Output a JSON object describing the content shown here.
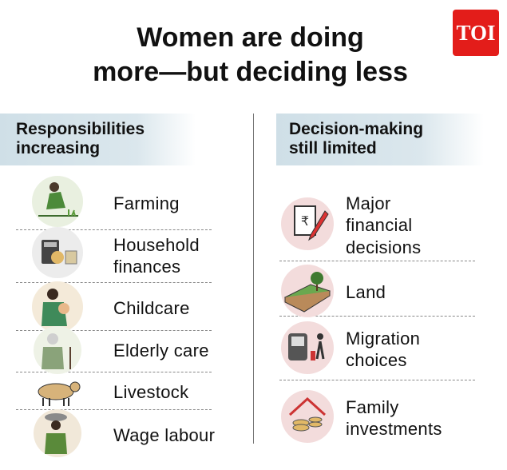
{
  "header": {
    "title_lines": [
      "Women are doing",
      "more—but deciding less"
    ],
    "logo": "TOI"
  },
  "left": {
    "heading": "Responsibilities increasing",
    "items": [
      "Farming",
      "Household finances",
      "Childcare",
      "Elderly care",
      "Livestock",
      "Wage labour"
    ]
  },
  "right": {
    "heading": "Decision-making still limited",
    "items": [
      "Major financial decisions",
      "Land",
      "Migration choices",
      "Family investments"
    ]
  }
}
